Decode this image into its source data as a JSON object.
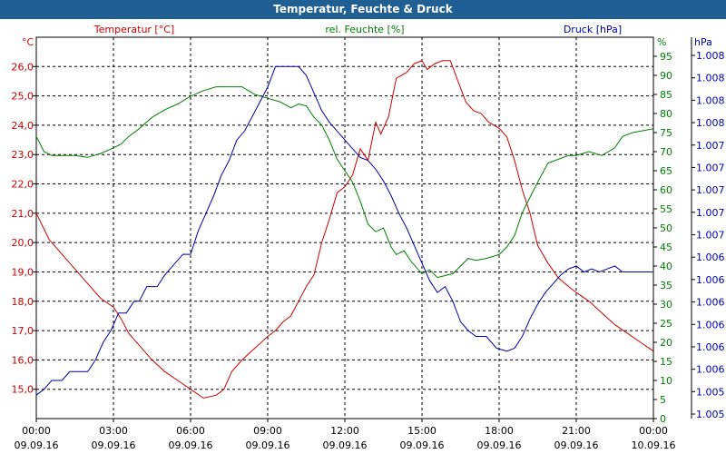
{
  "title": "Temperatur, Feuchte & Druck",
  "series_labels": {
    "temperature": "Temperatur [°C]",
    "humidity": "rel. Feuchte [%]",
    "pressure": "Druck [hPa]"
  },
  "axis_units": {
    "left": "°C",
    "middle": "%",
    "right": "hPa"
  },
  "colors": {
    "temperature": "#cc0000",
    "humidity": "#008000",
    "pressure": "#0000aa",
    "title_bar": "#1f5f94"
  },
  "chart_data": {
    "type": "line",
    "title": "Temperatur, Feuchte & Druck",
    "x_ticks": [
      {
        "time": "00:00",
        "date": "09.09.16"
      },
      {
        "time": "03:00",
        "date": "09.09.16"
      },
      {
        "time": "06:00",
        "date": "09.09.16"
      },
      {
        "time": "09:00",
        "date": "09.09.16"
      },
      {
        "time": "12:00",
        "date": "09.09.16"
      },
      {
        "time": "15:00",
        "date": "09.09.16"
      },
      {
        "time": "18:00",
        "date": "09.09.16"
      },
      {
        "time": "21:00",
        "date": "09.09.16"
      },
      {
        "time": "00:00",
        "date": "10.09.16"
      }
    ],
    "x_range_hours": [
      0,
      24
    ],
    "y_left": {
      "unit": "°C",
      "range": [
        14.0,
        27.0
      ],
      "ticks": [
        "15,0",
        "16,0",
        "17,0",
        "18,0",
        "19,0",
        "20,0",
        "21,0",
        "22,0",
        "23,0",
        "24,0",
        "25,0",
        "26,0"
      ]
    },
    "y_middle": {
      "unit": "%",
      "range": [
        0,
        100
      ],
      "ticks": [
        "0",
        "5",
        "10",
        "15",
        "20",
        "25",
        "30",
        "35",
        "40",
        "45",
        "50",
        "55",
        "60",
        "65",
        "70",
        "75",
        "80",
        "85",
        "90",
        "95"
      ]
    },
    "y_right": {
      "unit": "hPa",
      "ticks": [
        "1.005",
        "1.005",
        "1.006",
        "1.006",
        "1.006",
        "1.006",
        "1.006",
        "1.006",
        "1.007",
        "1.007",
        "1.007",
        "1.007",
        "1.007",
        "1.008",
        "1.008",
        "1.008",
        "1.008"
      ]
    },
    "grid": true,
    "series": [
      {
        "name": "Temperatur [°C]",
        "axis": "left",
        "points": [
          [
            0,
            21.0
          ],
          [
            0.5,
            20.1
          ],
          [
            1,
            19.6
          ],
          [
            1.5,
            19.1
          ],
          [
            2,
            18.6
          ],
          [
            2.5,
            18.1
          ],
          [
            3,
            17.8
          ],
          [
            3.3,
            17.4
          ],
          [
            3.6,
            16.9
          ],
          [
            4,
            16.5
          ],
          [
            4.5,
            16.0
          ],
          [
            5,
            15.6
          ],
          [
            5.5,
            15.3
          ],
          [
            6,
            15.0
          ],
          [
            6.5,
            14.7
          ],
          [
            7,
            14.8
          ],
          [
            7.3,
            15.0
          ],
          [
            7.6,
            15.6
          ],
          [
            8,
            16.0
          ],
          [
            8.5,
            16.4
          ],
          [
            9,
            16.8
          ],
          [
            9.3,
            17.0
          ],
          [
            9.6,
            17.3
          ],
          [
            9.9,
            17.5
          ],
          [
            10.2,
            18.0
          ],
          [
            10.5,
            18.5
          ],
          [
            10.8,
            18.9
          ],
          [
            11.1,
            20.0
          ],
          [
            11.4,
            20.8
          ],
          [
            11.7,
            21.7
          ],
          [
            12,
            21.9
          ],
          [
            12.3,
            22.3
          ],
          [
            12.6,
            23.2
          ],
          [
            12.9,
            22.8
          ],
          [
            13.2,
            24.1
          ],
          [
            13.4,
            23.7
          ],
          [
            13.7,
            24.3
          ],
          [
            14,
            25.6
          ],
          [
            14.4,
            25.8
          ],
          [
            14.7,
            26.1
          ],
          [
            15,
            26.2
          ],
          [
            15.2,
            25.9
          ],
          [
            15.5,
            26.1
          ],
          [
            15.8,
            26.2
          ],
          [
            16.1,
            26.2
          ],
          [
            16.4,
            25.5
          ],
          [
            16.7,
            24.8
          ],
          [
            17,
            24.5
          ],
          [
            17.3,
            24.4
          ],
          [
            17.6,
            24.1
          ],
          [
            18,
            23.9
          ],
          [
            18.3,
            23.6
          ],
          [
            18.6,
            22.8
          ],
          [
            18.9,
            21.8
          ],
          [
            19.2,
            21.0
          ],
          [
            19.5,
            19.9
          ],
          [
            19.9,
            19.3
          ],
          [
            20.3,
            18.8
          ],
          [
            20.7,
            18.5
          ],
          [
            21,
            18.3
          ],
          [
            21.5,
            18.0
          ],
          [
            22,
            17.6
          ],
          [
            22.5,
            17.2
          ],
          [
            23,
            16.9
          ],
          [
            23.5,
            16.6
          ],
          [
            24,
            16.3
          ]
        ]
      },
      {
        "name": "rel. Feuchte [%]",
        "axis": "middle",
        "points": [
          [
            0,
            74
          ],
          [
            0.3,
            70
          ],
          [
            0.6,
            69
          ],
          [
            1,
            69
          ],
          [
            1.5,
            69
          ],
          [
            2,
            68.5
          ],
          [
            2.5,
            69.5
          ],
          [
            3,
            71
          ],
          [
            3.3,
            72
          ],
          [
            3.6,
            74
          ],
          [
            4,
            76
          ],
          [
            4.5,
            79
          ],
          [
            5,
            81
          ],
          [
            5.5,
            82.5
          ],
          [
            6,
            84.5
          ],
          [
            6.5,
            86
          ],
          [
            7,
            87
          ],
          [
            7.5,
            87
          ],
          [
            8,
            87
          ],
          [
            8.5,
            85
          ],
          [
            9,
            84
          ],
          [
            9.5,
            83
          ],
          [
            9.9,
            81.5
          ],
          [
            10.2,
            82.5
          ],
          [
            10.5,
            82
          ],
          [
            10.8,
            79
          ],
          [
            11.1,
            77
          ],
          [
            11.4,
            73
          ],
          [
            11.7,
            68
          ],
          [
            12,
            65
          ],
          [
            12.3,
            62
          ],
          [
            12.6,
            57
          ],
          [
            12.9,
            51
          ],
          [
            13.2,
            49
          ],
          [
            13.5,
            50
          ],
          [
            13.8,
            45
          ],
          [
            14,
            43
          ],
          [
            14.3,
            44
          ],
          [
            14.6,
            41
          ],
          [
            15,
            38
          ],
          [
            15.3,
            39
          ],
          [
            15.6,
            37
          ],
          [
            15.9,
            37.5
          ],
          [
            16.2,
            38
          ],
          [
            16.5,
            40
          ],
          [
            16.8,
            42
          ],
          [
            17.1,
            41.5
          ],
          [
            17.5,
            42
          ],
          [
            18,
            43
          ],
          [
            18.3,
            45
          ],
          [
            18.6,
            48
          ],
          [
            18.9,
            54
          ],
          [
            19.2,
            58
          ],
          [
            19.5,
            62
          ],
          [
            19.9,
            67
          ],
          [
            20.3,
            68
          ],
          [
            20.7,
            69
          ],
          [
            21,
            69
          ],
          [
            21.5,
            70
          ],
          [
            22,
            69
          ],
          [
            22.5,
            71
          ],
          [
            22.8,
            74
          ],
          [
            23.2,
            75
          ],
          [
            23.6,
            75.5
          ],
          [
            24,
            76
          ]
        ]
      },
      {
        "name": "Druck [hPa]",
        "axis": "right",
        "points": [
          [
            0,
            14.8
          ],
          [
            0.3,
            15.0
          ],
          [
            0.6,
            15.3
          ],
          [
            1,
            15.3
          ],
          [
            1.3,
            15.6
          ],
          [
            2,
            15.6
          ],
          [
            2.3,
            16.0
          ],
          [
            2.6,
            16.6
          ],
          [
            2.9,
            17.0
          ],
          [
            3.2,
            17.6
          ],
          [
            3.5,
            17.6
          ],
          [
            3.8,
            18.0
          ],
          [
            4,
            18.0
          ],
          [
            4.3,
            18.5
          ],
          [
            4.7,
            18.5
          ],
          [
            5.0,
            18.9
          ],
          [
            5.4,
            19.3
          ],
          [
            5.7,
            19.6
          ],
          [
            6.0,
            19.6
          ],
          [
            6.3,
            20.4
          ],
          [
            6.6,
            21.0
          ],
          [
            6.9,
            21.6
          ],
          [
            7.2,
            22.3
          ],
          [
            7.5,
            22.8
          ],
          [
            7.8,
            23.5
          ],
          [
            8.1,
            23.8
          ],
          [
            8.4,
            24.3
          ],
          [
            8.7,
            24.8
          ],
          [
            9.0,
            25.3
          ],
          [
            9.3,
            26.0
          ],
          [
            9.6,
            26.0
          ],
          [
            10.2,
            26.0
          ],
          [
            10.5,
            25.7
          ],
          [
            10.8,
            25.1
          ],
          [
            11.1,
            24.5
          ],
          [
            11.4,
            24.1
          ],
          [
            11.7,
            23.8
          ],
          [
            12,
            23.5
          ],
          [
            12.3,
            23.2
          ],
          [
            12.6,
            22.9
          ],
          [
            12.9,
            22.8
          ],
          [
            13.2,
            22.5
          ],
          [
            13.5,
            22.1
          ],
          [
            13.8,
            21.6
          ],
          [
            14.1,
            21.0
          ],
          [
            14.4,
            20.5
          ],
          [
            14.7,
            19.9
          ],
          [
            15,
            19.3
          ],
          [
            15.3,
            18.7
          ],
          [
            15.6,
            18.3
          ],
          [
            15.9,
            18.5
          ],
          [
            16.2,
            18.0
          ],
          [
            16.5,
            17.3
          ],
          [
            16.8,
            17.0
          ],
          [
            17.1,
            16.8
          ],
          [
            17.5,
            16.8
          ],
          [
            17.9,
            16.4
          ],
          [
            18.3,
            16.3
          ],
          [
            18.6,
            16.4
          ],
          [
            18.9,
            16.8
          ],
          [
            19.2,
            17.4
          ],
          [
            19.5,
            17.9
          ],
          [
            19.8,
            18.3
          ],
          [
            20.1,
            18.6
          ],
          [
            20.4,
            18.9
          ],
          [
            20.7,
            19.1
          ],
          [
            21,
            19.2
          ],
          [
            21.3,
            19.0
          ],
          [
            21.6,
            19.1
          ],
          [
            21.9,
            19.0
          ],
          [
            22.2,
            19.1
          ],
          [
            22.5,
            19.2
          ],
          [
            22.8,
            19.0
          ],
          [
            23.1,
            19.0
          ],
          [
            24,
            19.0
          ]
        ]
      }
    ]
  }
}
